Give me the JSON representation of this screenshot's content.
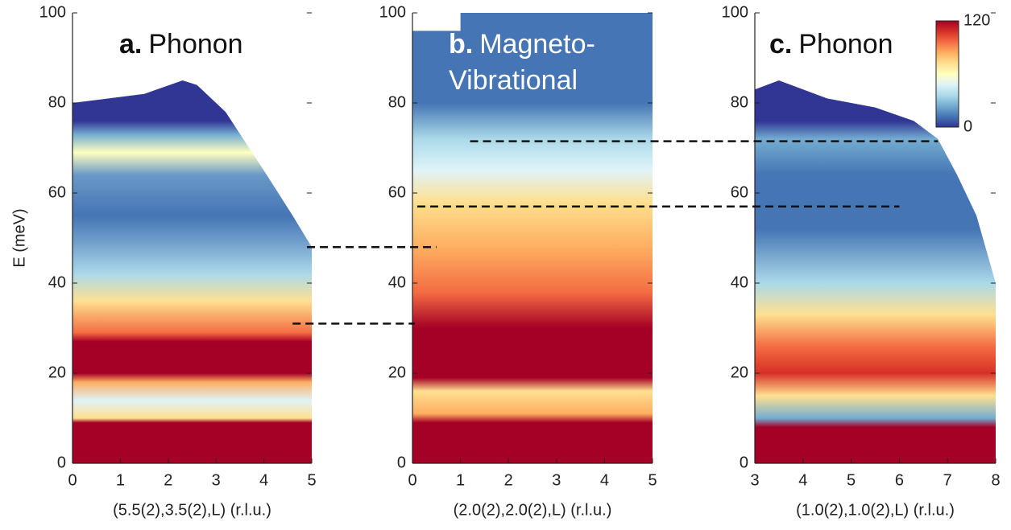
{
  "chart_data": [
    {
      "type": "heatmap",
      "title_letter": "a.",
      "title_lines": [
        "Phonon"
      ],
      "ylabel": "E (meV)",
      "xlabel": "(5.5(2),3.5(2),L) (r.l.u.)",
      "xlim": [
        0,
        5
      ],
      "xticks": [
        0,
        1,
        2,
        3,
        4,
        5
      ],
      "ylim": [
        0,
        100
      ],
      "yticks": [
        0,
        20,
        40,
        60,
        80,
        100
      ]
    },
    {
      "type": "heatmap",
      "title_letter": "b.",
      "title_lines": [
        "Magneto-",
        "Vibrational"
      ],
      "xlabel": "(2.0(2),2.0(2),L) (r.l.u.)",
      "xlim": [
        0,
        5
      ],
      "xticks": [
        0,
        1,
        2,
        3,
        4,
        5
      ],
      "ylim": [
        0,
        100
      ],
      "yticks": [
        0,
        20,
        40,
        60,
        80,
        100
      ]
    },
    {
      "type": "heatmap",
      "title_letter": "c.",
      "title_lines": [
        "Phonon"
      ],
      "xlabel": "(1.0(2),1.0(2),L) (r.l.u.)",
      "xlim": [
        3,
        8
      ],
      "xticks": [
        3,
        4,
        5,
        6,
        7,
        8
      ],
      "ylim": [
        0,
        100
      ],
      "yticks": [
        0,
        20,
        40,
        60,
        80,
        100
      ],
      "colorbar": {
        "lim": [
          0,
          120
        ],
        "ticks": [
          0,
          120
        ]
      }
    }
  ],
  "guides": [
    48,
    31,
    71.5,
    57
  ]
}
